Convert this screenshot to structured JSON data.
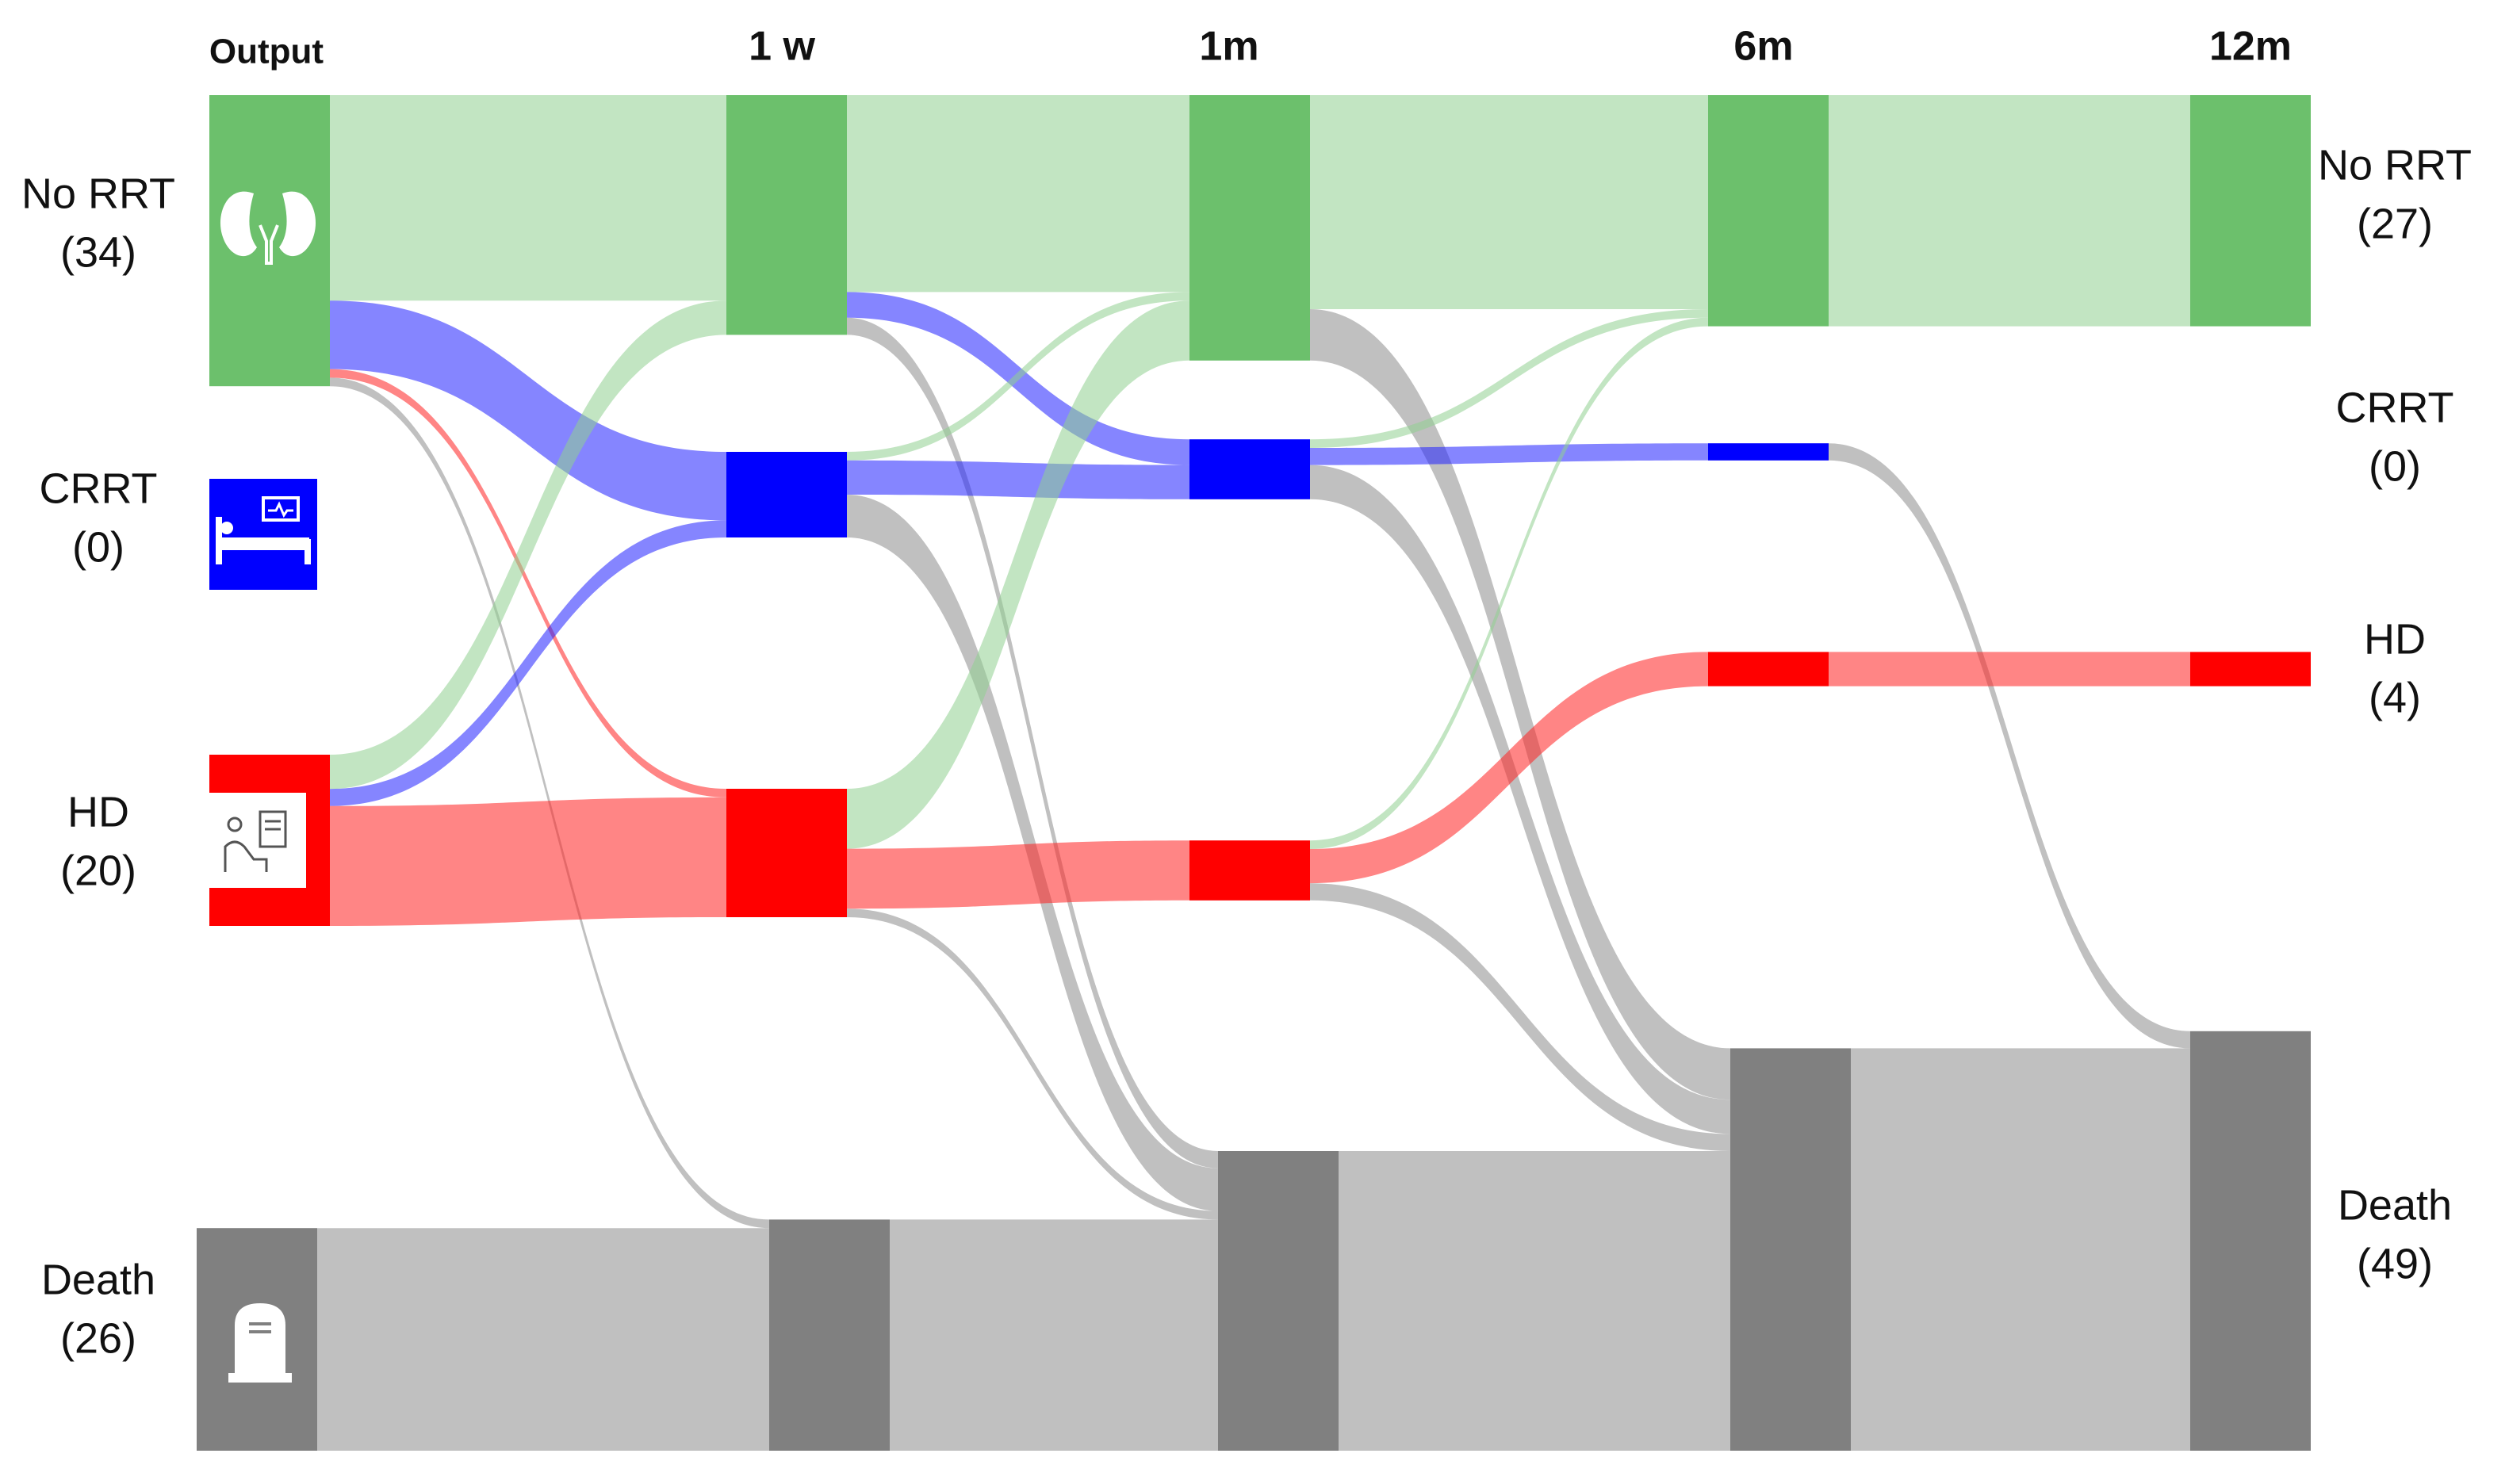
{
  "chart_data": {
    "type": "sankey",
    "stages": [
      "Output",
      "1 w",
      "1m",
      "6m",
      "12m"
    ],
    "states": [
      {
        "name": "No RRT",
        "color": "#6cc06c",
        "link_color": "#8fd08f"
      },
      {
        "name": "CRRT",
        "color": "#0000ff",
        "link_color": "#2020ff"
      },
      {
        "name": "HD",
        "color": "#ff0000",
        "link_color": "#ff2020"
      },
      {
        "name": "Death",
        "color": "#808080",
        "link_color": "#8c8c8c"
      }
    ],
    "nodes": [
      [
        34,
        0,
        20,
        26
      ],
      [
        28,
        10,
        15,
        27
      ],
      [
        31,
        7,
        7,
        35
      ],
      [
        27,
        2,
        4,
        47
      ],
      [
        27,
        0,
        4,
        49
      ]
    ],
    "links": [
      [
        {
          "source": 0,
          "target": 0,
          "value": 24
        },
        {
          "source": 0,
          "target": 1,
          "value": 8
        },
        {
          "source": 0,
          "target": 2,
          "value": 1
        },
        {
          "source": 0,
          "target": 3,
          "value": 1
        },
        {
          "source": 2,
          "target": 0,
          "value": 4
        },
        {
          "source": 2,
          "target": 1,
          "value": 2
        },
        {
          "source": 2,
          "target": 2,
          "value": 14
        },
        {
          "source": 3,
          "target": 3,
          "value": 26
        }
      ],
      [
        {
          "source": 0,
          "target": 0,
          "value": 23
        },
        {
          "source": 0,
          "target": 1,
          "value": 3
        },
        {
          "source": 0,
          "target": 3,
          "value": 2
        },
        {
          "source": 1,
          "target": 0,
          "value": 1
        },
        {
          "source": 1,
          "target": 1,
          "value": 4
        },
        {
          "source": 1,
          "target": 3,
          "value": 5
        },
        {
          "source": 2,
          "target": 0,
          "value": 7
        },
        {
          "source": 2,
          "target": 2,
          "value": 7
        },
        {
          "source": 2,
          "target": 3,
          "value": 1
        },
        {
          "source": 3,
          "target": 3,
          "value": 27
        }
      ],
      [
        {
          "source": 0,
          "target": 0,
          "value": 25
        },
        {
          "source": 0,
          "target": 3,
          "value": 6
        },
        {
          "source": 1,
          "target": 0,
          "value": 1
        },
        {
          "source": 1,
          "target": 1,
          "value": 2
        },
        {
          "source": 1,
          "target": 3,
          "value": 4
        },
        {
          "source": 2,
          "target": 0,
          "value": 1
        },
        {
          "source": 2,
          "target": 2,
          "value": 4
        },
        {
          "source": 2,
          "target": 3,
          "value": 2
        },
        {
          "source": 3,
          "target": 3,
          "value": 35
        }
      ],
      [
        {
          "source": 0,
          "target": 0,
          "value": 27
        },
        {
          "source": 1,
          "target": 3,
          "value": 2
        },
        {
          "source": 2,
          "target": 2,
          "value": 4
        },
        {
          "source": 3,
          "target": 3,
          "value": 47
        }
      ]
    ],
    "left_labels": [
      {
        "name": "No RRT",
        "count": {
          "value": 34,
          "label": "(34)"
        }
      },
      {
        "name": "CRRT",
        "count": {
          "value": 0,
          "label": "(0)"
        }
      },
      {
        "name": "HD",
        "count": {
          "value": 20,
          "label": "(20)"
        }
      },
      {
        "name": "Death",
        "count": {
          "value": 26,
          "label": "(26)"
        }
      }
    ],
    "right_labels": [
      {
        "name": "No RRT",
        "count": {
          "value": 27,
          "label": "(27)"
        }
      },
      {
        "name": "CRRT",
        "count": {
          "value": 0,
          "label": "(0)"
        }
      },
      {
        "name": "HD",
        "count": {
          "value": 4,
          "label": "(4)"
        }
      },
      {
        "name": "Death",
        "count": {
          "value": 49,
          "label": "(49)"
        }
      }
    ]
  }
}
